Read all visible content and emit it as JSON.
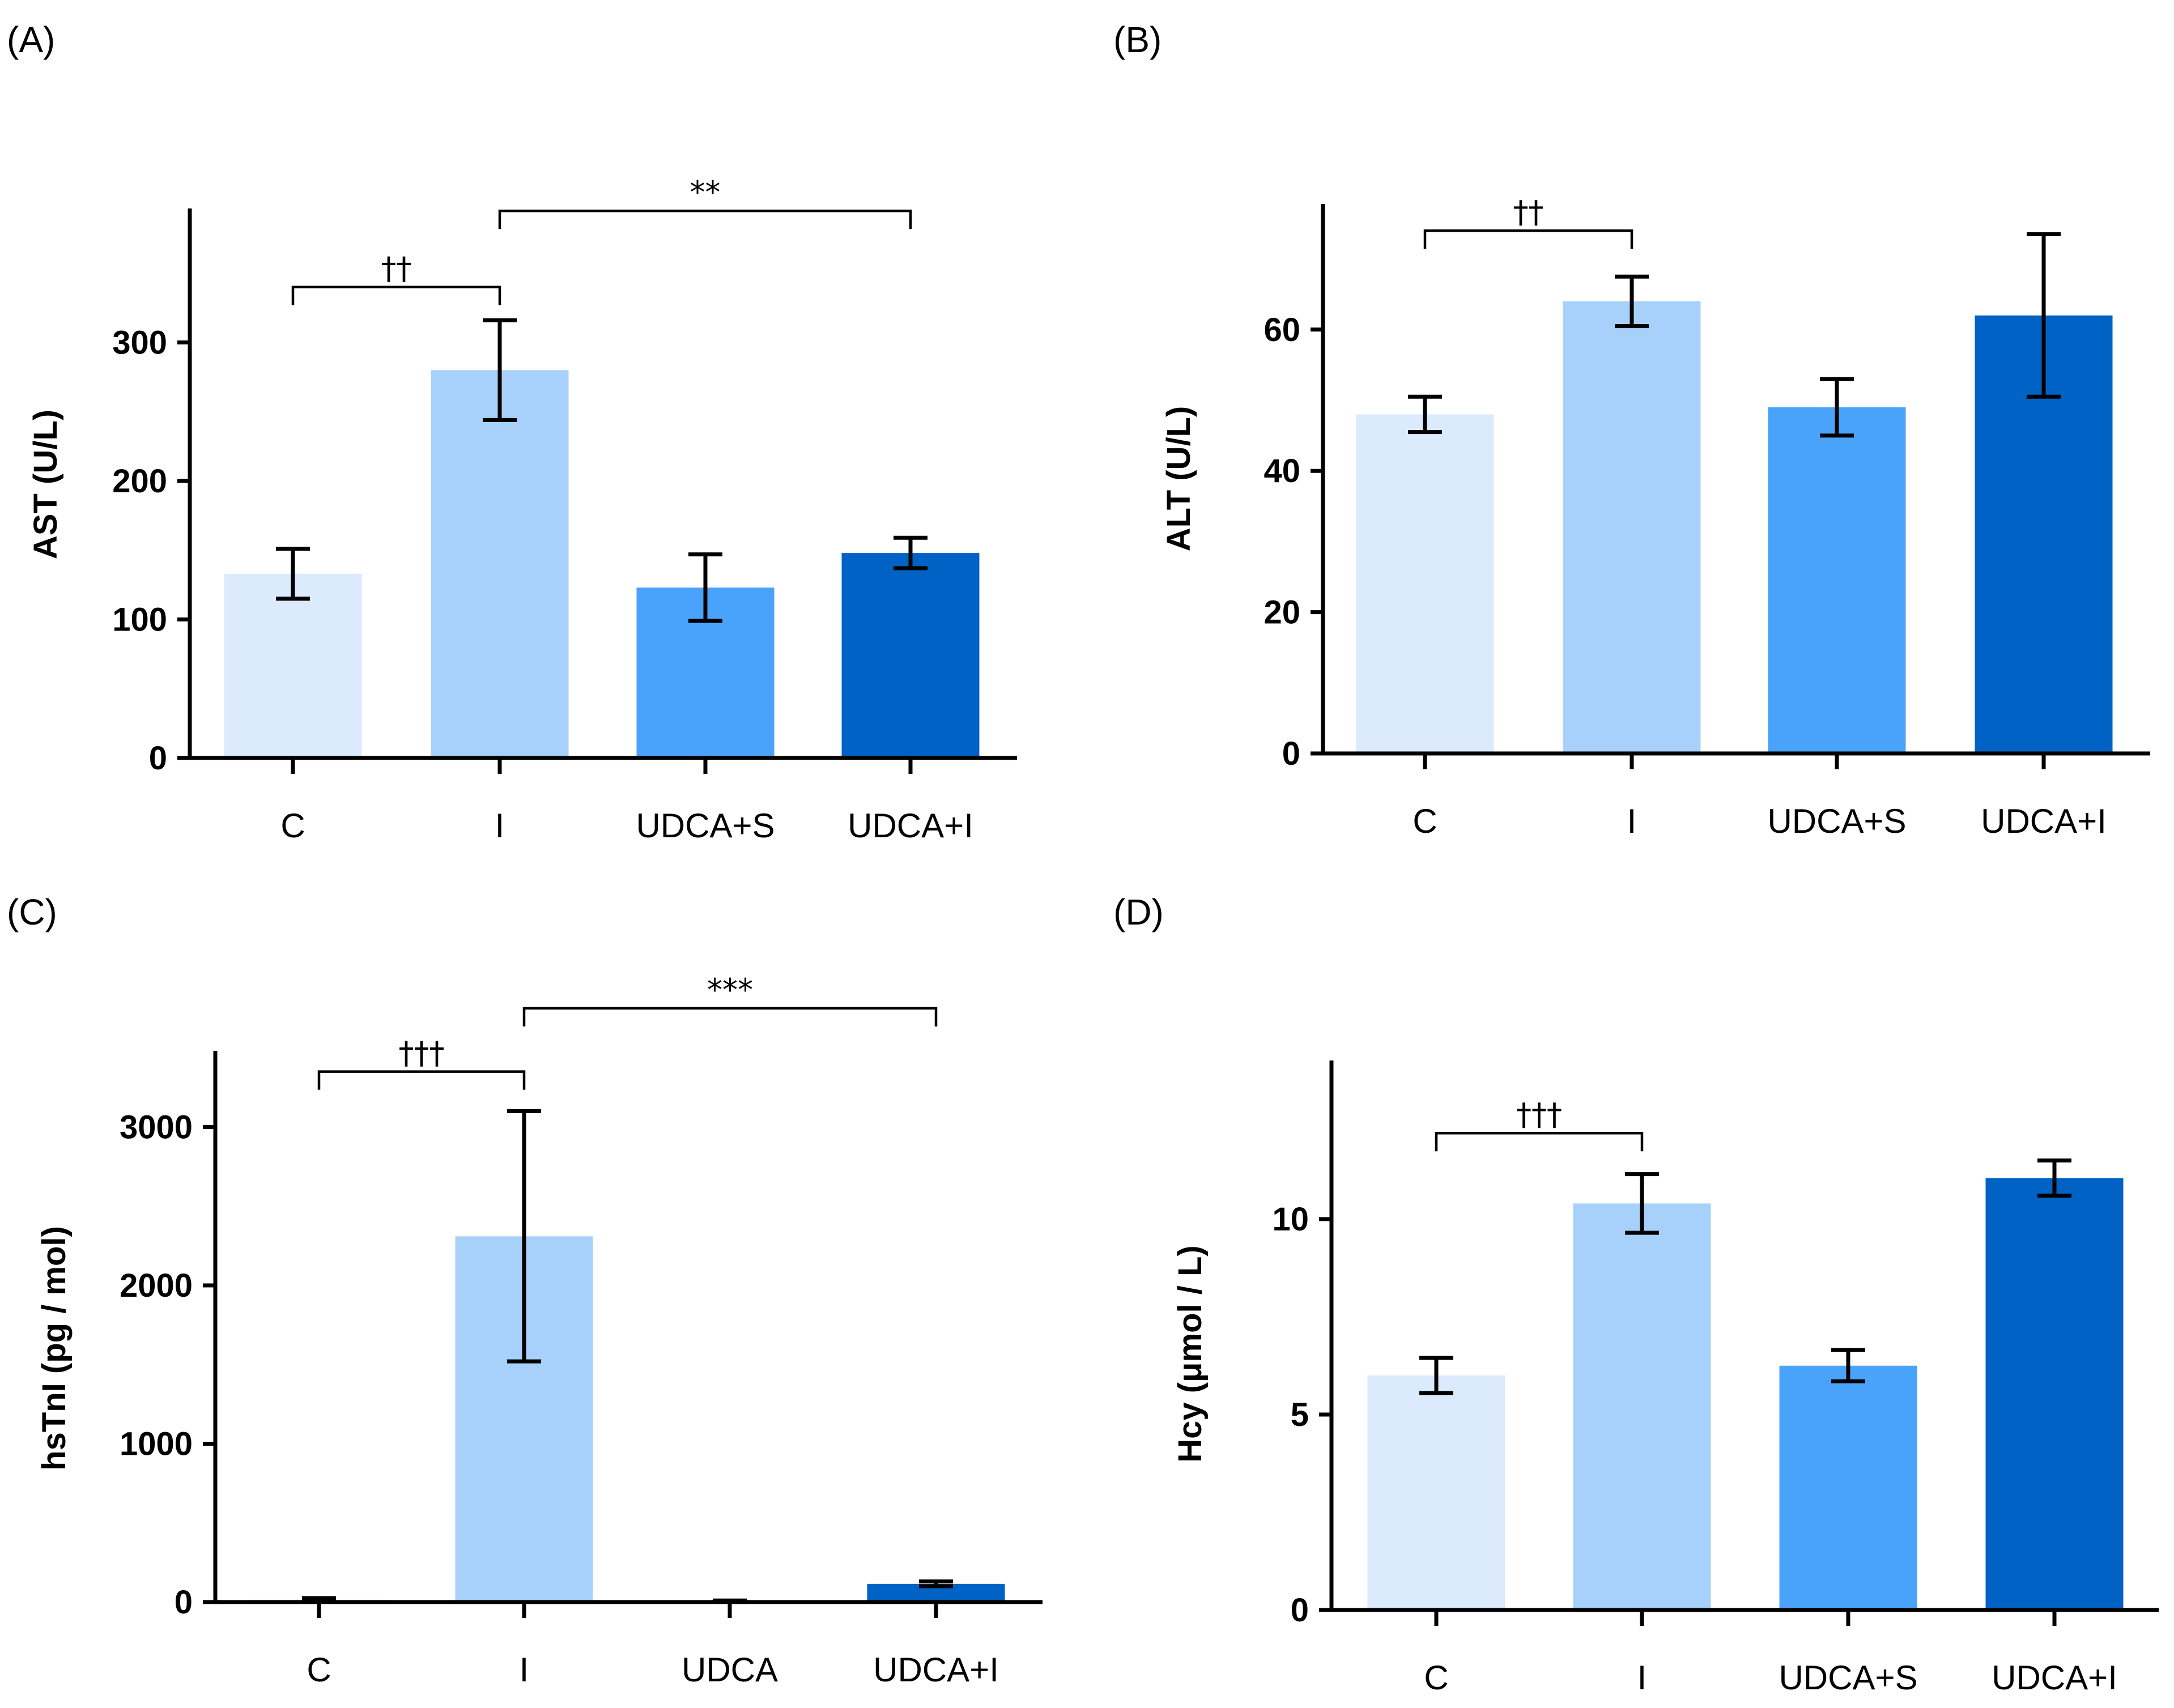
{
  "chart_data": [
    {
      "panel_label": "(A)",
      "type": "bar",
      "ylabel": "AST (U/L)",
      "ylim": [
        0,
        400
      ],
      "yticks": [
        0,
        100,
        200,
        300
      ],
      "categories": [
        "C",
        "I",
        "UDCA+S",
        "UDCA+I"
      ],
      "values": [
        133,
        280,
        123,
        148
      ],
      "errors": [
        18,
        36,
        24,
        11
      ],
      "colors": [
        "#dbeafc",
        "#a7d1fa",
        "#4aa3fb",
        "#0062c5"
      ],
      "significance": [
        {
          "from": 0,
          "to": 1,
          "label": "††",
          "y": 340
        },
        {
          "from": 1,
          "to": 3,
          "label": "**",
          "y": 395
        }
      ]
    },
    {
      "panel_label": "(B)",
      "type": "bar",
      "ylabel": "ALT (U/L)",
      "ylim": [
        0,
        78
      ],
      "yticks": [
        0,
        20,
        40,
        60
      ],
      "categories": [
        "C",
        "I",
        "UDCA+S",
        "UDCA+I"
      ],
      "values": [
        48,
        64,
        49,
        62
      ],
      "errors": [
        2.5,
        3.5,
        4,
        11.5
      ],
      "colors": [
        "#dbeafc",
        "#a7d1fa",
        "#4aa3fb",
        "#0062c5"
      ],
      "significance": [
        {
          "from": 0,
          "to": 1,
          "label": "††",
          "y": 74
        }
      ]
    },
    {
      "panel_label": "(C)",
      "type": "bar",
      "ylabel": "hsTnI (pg / mol)",
      "ylim": [
        0,
        3500
      ],
      "yticks": [
        0,
        1000,
        2000,
        3000
      ],
      "categories": [
        "C",
        "I",
        "UDCA",
        "UDCA+I"
      ],
      "values": [
        15,
        2310,
        5,
        115
      ],
      "errors": [
        10,
        790,
        5,
        15
      ],
      "colors": [
        "#dbeafc",
        "#a7d1fa",
        "#4aa3fb",
        "#0062c5"
      ],
      "significance": [
        {
          "from": 0,
          "to": 1,
          "label": "†††",
          "y": 3350
        },
        {
          "from": 1,
          "to": 3,
          "label": "***",
          "y": 3750
        }
      ]
    },
    {
      "panel_label": "(D)",
      "type": "bar",
      "ylabel": "Hcy (μmol / L)",
      "ylim": [
        0,
        14
      ],
      "yticks": [
        0,
        5,
        10
      ],
      "categories": [
        "C",
        "I",
        "UDCA+S",
        "UDCA+I"
      ],
      "values": [
        6,
        10.4,
        6.25,
        11.05
      ],
      "errors": [
        0.45,
        0.75,
        0.4,
        0.45
      ],
      "colors": [
        "#dbeafc",
        "#a7d1fa",
        "#4aa3fb",
        "#0062c5"
      ],
      "significance": [
        {
          "from": 0,
          "to": 1,
          "label": "†††",
          "y": 12.2
        }
      ]
    }
  ]
}
